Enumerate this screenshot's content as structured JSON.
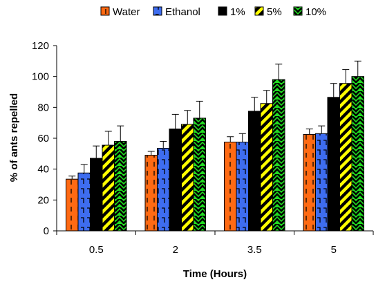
{
  "chart_data": {
    "type": "bar",
    "title": "",
    "xlabel": "Time (Hours)",
    "ylabel": "% of ants repelled",
    "categories": [
      "0.5",
      "2",
      "3.5",
      "5"
    ],
    "ylim": [
      0,
      120
    ],
    "yticks": [
      "0",
      "20",
      "40",
      "60",
      "80",
      "100",
      "120"
    ],
    "grid": false,
    "legend_position": "top",
    "error_bars": true,
    "series": [
      {
        "name": "Water",
        "color": "#ff6a13",
        "pattern": "dashed-vertical",
        "values": [
          33.5,
          49,
          57.5,
          62.5
        ],
        "errors": [
          2,
          2.5,
          3.5,
          3.5
        ]
      },
      {
        "name": "Ethanol",
        "color": "#3e6df0",
        "pattern": "dashed-steps",
        "values": [
          37.5,
          53.5,
          57.5,
          63
        ],
        "errors": [
          5.5,
          4.5,
          5.5,
          5
        ]
      },
      {
        "name": "1%",
        "color": "#000000",
        "pattern": "solid",
        "values": [
          47,
          66,
          77.5,
          86.5
        ],
        "errors": [
          8,
          9.5,
          9,
          9
        ]
      },
      {
        "name": "5%",
        "color": "#ffff00",
        "pattern": "black-diagonal",
        "values": [
          55.5,
          69,
          82.5,
          95.5
        ],
        "errors": [
          9,
          9,
          8.5,
          9
        ]
      },
      {
        "name": "10%",
        "color": "#22dd22",
        "pattern": "black-zigzag",
        "values": [
          58,
          73,
          98,
          100
        ],
        "errors": [
          10,
          11,
          10,
          10
        ]
      }
    ]
  }
}
